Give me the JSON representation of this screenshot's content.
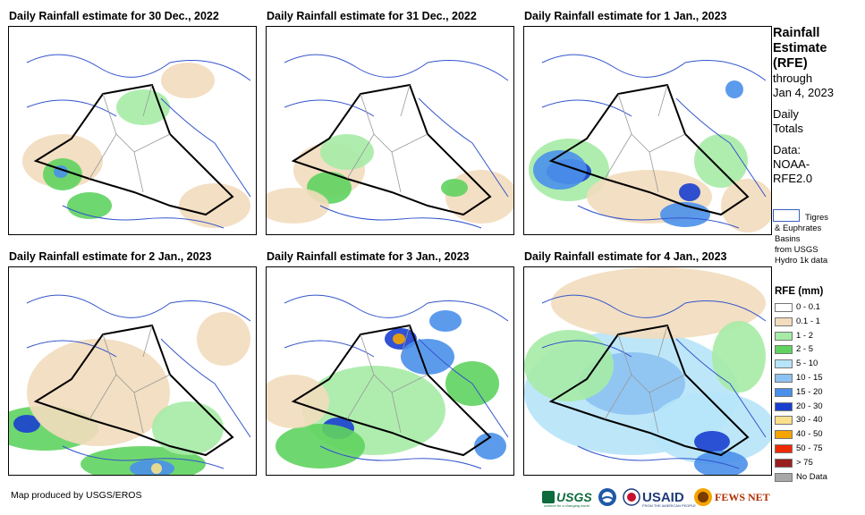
{
  "panels": [
    {
      "title": "Daily Rainfall estimate for 30 Dec., 2022"
    },
    {
      "title": "Daily Rainfall estimate for 31 Dec., 2022"
    },
    {
      "title": "Daily Rainfall estimate for 1 Jan., 2023"
    },
    {
      "title": "Daily Rainfall estimate for 2 Jan., 2023"
    },
    {
      "title": "Daily Rainfall estimate for 3 Jan., 2023"
    },
    {
      "title": "Daily Rainfall estimate for 4 Jan., 2023"
    }
  ],
  "sidebar": {
    "title_line1": "Rainfall",
    "title_line2": "Estimate",
    "title_line3": "(RFE)",
    "through": "through",
    "through_date": "Jan 4, 2023",
    "daily": "Daily",
    "totals": "Totals",
    "data_label": "Data:",
    "data_source1": "NOAA-",
    "data_source2": "RFE2.0",
    "basin_line1": "Tigres",
    "basin_line2": "& Euphrates",
    "basin_line3": "Basins",
    "basin_line4": "from USGS",
    "basin_line5": "Hydro 1k data",
    "legend_title": "RFE (mm)"
  },
  "legend": [
    {
      "label": "0 - 0.1",
      "color": "#ffffff"
    },
    {
      "label": "0.1 - 1",
      "color": "#f2dcbd"
    },
    {
      "label": "1 - 2",
      "color": "#a6eba6"
    },
    {
      "label": "2 - 5",
      "color": "#5fd35f"
    },
    {
      "label": "5 - 10",
      "color": "#b6e4f8"
    },
    {
      "label": "10 - 15",
      "color": "#8cc2f2"
    },
    {
      "label": "15 - 20",
      "color": "#4a90ea"
    },
    {
      "label": "20 - 30",
      "color": "#1a3fcf"
    },
    {
      "label": "30 - 40",
      "color": "#f9e08a"
    },
    {
      "label": "40 - 50",
      "color": "#f5a400"
    },
    {
      "label": "50 - 75",
      "color": "#ee2a00"
    },
    {
      "label": "> 75",
      "color": "#9a1f1f"
    },
    {
      "label": "No Data",
      "color": "#a8a8a8"
    }
  ],
  "footer": {
    "credit": "Map produced by USGS/EROS"
  },
  "logos": {
    "usgs": "USGS",
    "usgs_tag": "science for a changing world",
    "usaid": "USAID",
    "usaid_tag": "FROM THE AMERICAN PEOPLE",
    "fewsnet": "FEWS NET"
  }
}
